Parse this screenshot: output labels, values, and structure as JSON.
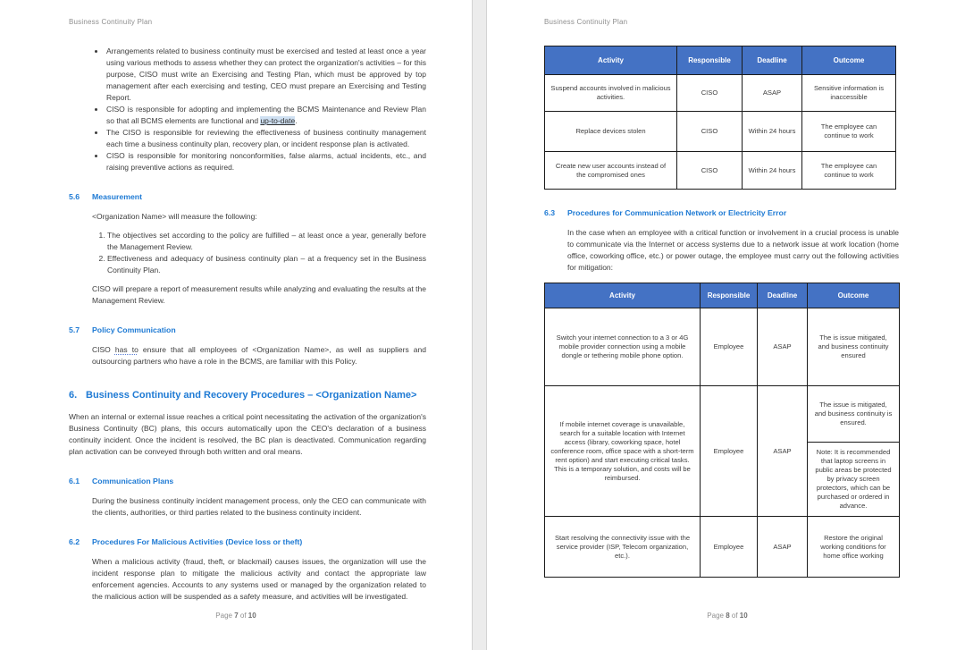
{
  "colors": {
    "heading_blue": "#1e7ad4",
    "table_header_bg": "#4472c4",
    "table_header_text": "#ffffff",
    "header_footer_gray": "#8f8f8f",
    "highlight_blue": "#cfe0f2"
  },
  "page7": {
    "header": "Business Continuity Plan",
    "bullets": [
      "Arrangements related to business continuity must be exercised and tested at least once a year using various methods to assess whether they can protect the organization's activities – for this purpose, CISO must write an Exercising and Testing Plan, which must be approved by top management after each exercising and testing, CEO must prepare an Exercising and Testing Report.",
      {
        "pre": "CISO is responsible for adopting and implementing the BCMS Maintenance and Review Plan so that all BCMS elements are functional and ",
        "link": "up-to-date",
        "post": "."
      },
      "The CISO is responsible for reviewing the effectiveness of business continuity management each time a business continuity plan, recovery plan, or incident response plan is activated.",
      "CISO is responsible for monitoring nonconformities, false alarms, actual incidents, etc., and raising preventive actions as required."
    ],
    "s56": {
      "num": "5.6",
      "title": "Measurement"
    },
    "measure_intro": "<Organization Name> will measure the following:",
    "measure_items": [
      "The objectives set according to the policy are fulfilled – at least once a year, generally before the Management Review.",
      "Effectiveness and adequacy of business continuity plan – at a frequency set in the Business Continuity Plan."
    ],
    "measure_close": "CISO will prepare a report of measurement results while analyzing and evaluating the results at the Management Review.",
    "s57": {
      "num": "5.7",
      "title": "Policy Communication"
    },
    "s57_body": {
      "pre": "CISO ",
      "mid": "has to",
      "post": " ensure that all employees of <Organization Name>, as well as suppliers and outsourcing partners who have a role in the BCMS, are familiar with this Policy."
    },
    "h6": {
      "num": "6.",
      "title": "Business Continuity and Recovery Procedures – <Organization Name>"
    },
    "h6_body": "When an internal or external issue reaches a critical point necessitating the activation of the organization's Business Continuity (BC) plans, this occurs automatically upon the CEO's declaration of a business continuity incident. Once the incident is resolved, the BC plan is deactivated. Communication regarding plan activation can be conveyed through both written and oral means.",
    "s61": {
      "num": "6.1",
      "title": "Communication Plans"
    },
    "s61_body": "During the business continuity incident management process, only the CEO can communicate with the clients, authorities, or third parties related to the business continuity incident.",
    "s62": {
      "num": "6.2",
      "title": "Procedures For Malicious Activities (Device loss or theft)"
    },
    "s62_body": "When a malicious activity (fraud, theft, or blackmail) causes issues, the organization will use the incident response plan to mitigate the malicious activity and contact the appropriate law enforcement agencies. Accounts to any systems used or managed by the organization related to the malicious action will be suspended as a safety measure, and activities will be investigated.",
    "footer": {
      "prefix": "Page",
      "number": "7",
      "of": "of",
      "total": "10"
    }
  },
  "page8": {
    "header": "Business Continuity Plan",
    "table1": {
      "headers": [
        "Activity",
        "Responsible",
        "Deadline",
        "Outcome"
      ],
      "rows": [
        {
          "activity": "Suspend accounts involved in malicious activities.",
          "responsible": "CISO",
          "deadline": "ASAP",
          "outcome": "Sensitive information is inaccessible"
        },
        {
          "activity": "Replace devices stolen",
          "responsible": "CISO",
          "deadline": "Within 24 hours",
          "outcome": "The employee can continue to work"
        },
        {
          "activity": "Create new user accounts instead of the compromised ones",
          "responsible": "CISO",
          "deadline": "Within 24 hours",
          "outcome": "The employee can continue to work"
        }
      ]
    },
    "s63": {
      "num": "6.3",
      "title": "Procedures for Communication Network or Electricity Error"
    },
    "s63_body": "In the case when an employee with a critical function or involvement in a crucial process is unable to communicate via the Internet or access systems due to a network issue at work location (home office, coworking office, etc.) or power outage, the employee must carry out the following activities for mitigation:",
    "table2": {
      "headers": [
        "Activity",
        "Responsible",
        "Deadline",
        "Outcome"
      ],
      "row1": {
        "activity": "Switch your internet connection to a 3 or 4G mobile provider connection using a mobile dongle or tethering mobile phone option.",
        "responsible": "Employee",
        "deadline": "ASAP",
        "outcome": "The is issue mitigated, and business continuity ensured"
      },
      "row2": {
        "activity": "If mobile internet coverage is unavailable, search for a suitable location with Internet access (library, coworking space, hotel conference room, office space with a short-term rent option) and start executing critical tasks. This is a temporary solution, and costs will be reimbursed.",
        "responsible": "Employee",
        "deadline": "ASAP",
        "outcome_top": "The issue is mitigated, and business continuity is ensured.",
        "outcome_note": "Note: It is recommended that laptop screens in public areas be protected by privacy screen protectors, which can be purchased or ordered in advance."
      },
      "row3": {
        "activity": "Start resolving the connectivity issue with the service provider (ISP, Telecom organization, etc.).",
        "responsible": "Employee",
        "deadline": "ASAP",
        "outcome": "Restore the original working conditions for home office working"
      }
    },
    "footer": {
      "prefix": "Page",
      "number": "8",
      "of": "of",
      "total": "10"
    }
  }
}
